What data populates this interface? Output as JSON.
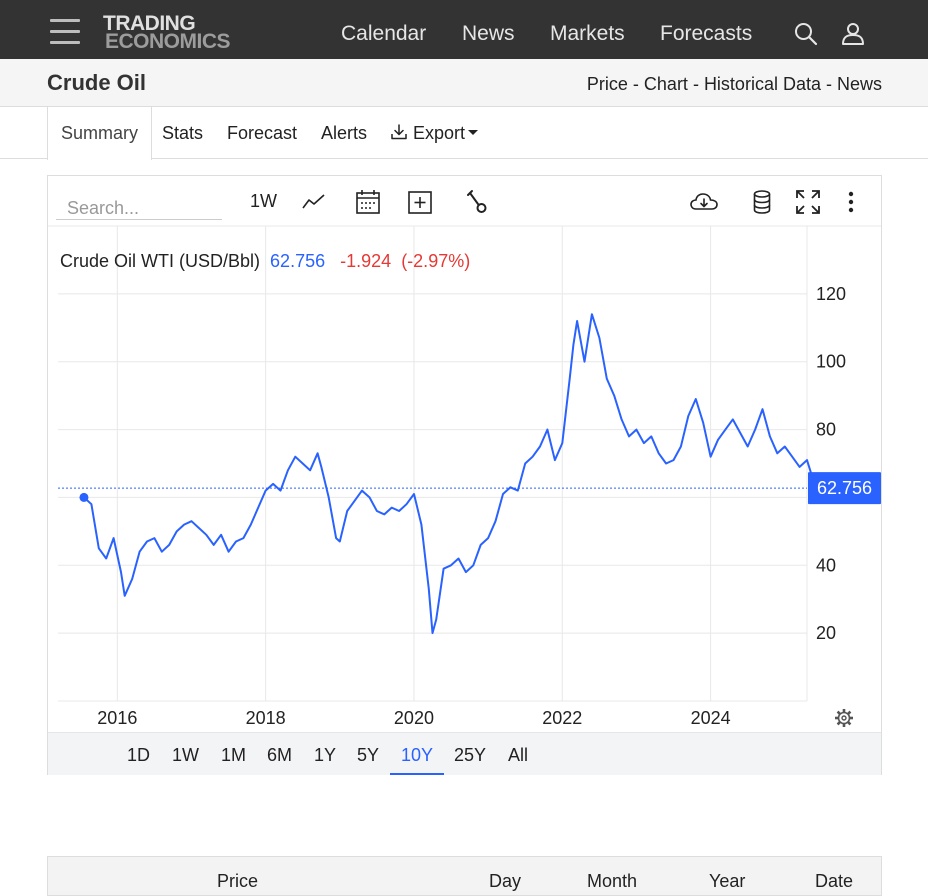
{
  "nav": {
    "logo_line1": "TRADING",
    "logo_line2": "ECONOMICS",
    "links": [
      "Calendar",
      "News",
      "Markets",
      "Forecasts"
    ]
  },
  "title": {
    "text": "Crude Oil",
    "links": [
      "Price",
      "Chart",
      "Historical Data",
      "News"
    ],
    "separator": "-"
  },
  "tabs": {
    "items": [
      "Summary",
      "Stats",
      "Forecast",
      "Alerts"
    ],
    "export_label": "Export",
    "active": "Summary"
  },
  "toolbar": {
    "search_placeholder": "Search...",
    "interval": "1W"
  },
  "chart_data": {
    "type": "line",
    "series": [
      {
        "name": "Crude Oil WTI (USD/Bbl)",
        "x": [
          2015.55,
          2015.65,
          2015.75,
          2015.85,
          2015.95,
          2016.05,
          2016.1,
          2016.2,
          2016.3,
          2016.4,
          2016.5,
          2016.6,
          2016.7,
          2016.8,
          2016.9,
          2017.0,
          2017.1,
          2017.2,
          2017.3,
          2017.4,
          2017.5,
          2017.6,
          2017.7,
          2017.8,
          2017.9,
          2018.0,
          2018.1,
          2018.2,
          2018.3,
          2018.4,
          2018.5,
          2018.6,
          2018.7,
          2018.75,
          2018.85,
          2018.95,
          2019.0,
          2019.1,
          2019.2,
          2019.3,
          2019.4,
          2019.5,
          2019.6,
          2019.7,
          2019.8,
          2019.9,
          2020.0,
          2020.1,
          2020.2,
          2020.25,
          2020.3,
          2020.4,
          2020.5,
          2020.6,
          2020.7,
          2020.8,
          2020.9,
          2021.0,
          2021.1,
          2021.2,
          2021.3,
          2021.4,
          2021.5,
          2021.6,
          2021.7,
          2021.8,
          2021.9,
          2022.0,
          2022.1,
          2022.15,
          2022.2,
          2022.3,
          2022.4,
          2022.5,
          2022.6,
          2022.7,
          2022.8,
          2022.9,
          2023.0,
          2023.1,
          2023.2,
          2023.3,
          2023.4,
          2023.5,
          2023.6,
          2023.7,
          2023.8,
          2023.9,
          2024.0,
          2024.1,
          2024.2,
          2024.3,
          2024.4,
          2024.5,
          2024.6,
          2024.7,
          2024.8,
          2024.9,
          2025.0,
          2025.1,
          2025.2,
          2025.3,
          2025.4,
          2025.45
        ],
        "values": [
          60,
          58,
          45,
          42,
          48,
          38,
          31,
          36,
          44,
          47,
          48,
          44,
          46,
          50,
          52,
          53,
          51,
          49,
          46,
          49,
          44,
          47,
          48,
          52,
          57,
          62,
          64,
          62,
          68,
          72,
          70,
          68,
          73,
          69,
          60,
          48,
          47,
          56,
          59,
          62,
          60,
          56,
          55,
          57,
          56,
          58,
          61,
          52,
          33,
          20,
          24,
          39,
          40,
          42,
          38,
          40,
          46,
          48,
          53,
          61,
          63,
          62,
          70,
          72,
          75,
          80,
          71,
          76,
          95,
          105,
          112,
          100,
          114,
          107,
          95,
          90,
          83,
          78,
          80,
          76,
          78,
          73,
          70,
          71,
          75,
          84,
          89,
          82,
          72,
          77,
          80,
          83,
          79,
          75,
          80,
          86,
          78,
          73,
          75,
          72,
          69,
          71,
          64,
          62.756
        ],
        "color": "#2962ff"
      }
    ],
    "xlim": [
      2015.2,
      2025.3
    ],
    "ylim": [
      0,
      140
    ],
    "yticks": [
      20,
      40,
      60,
      80,
      100,
      120
    ],
    "ytick_labels": [
      "20",
      "40",
      "",
      "80",
      "100",
      "120"
    ],
    "xticks": [
      2016,
      2018,
      2020,
      2022,
      2024
    ],
    "xtick_labels": [
      "2016",
      "2018",
      "2020",
      "2022",
      "2024"
    ],
    "last_value": 62.756,
    "last_value_label": "62.756",
    "change_label": "-1.924",
    "change_pct_label": "(-2.97%)",
    "grid": true,
    "colors": {
      "line": "#2962ff",
      "down": "#e53935",
      "grid": "#e8e8e8"
    }
  },
  "ranges": {
    "items": [
      "1D",
      "1W",
      "1M",
      "6M",
      "1Y",
      "5Y",
      "10Y",
      "25Y",
      "All"
    ],
    "active": "10Y"
  },
  "table": {
    "headers": [
      "Price",
      "Day",
      "Month",
      "Year",
      "Date"
    ]
  }
}
